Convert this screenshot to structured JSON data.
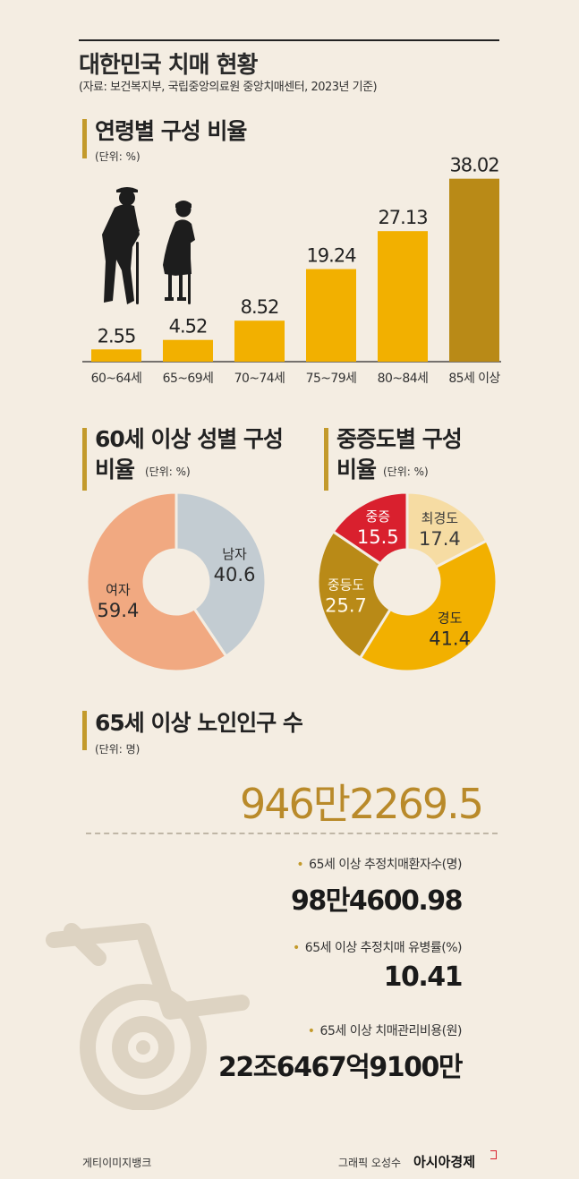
{
  "header": {
    "title": "대한민국 치매 현황",
    "source": "(자료: 보건복지부, 국립중앙의료원 중앙치매센터, 2023년 기준)"
  },
  "age_section": {
    "title": "연령별 구성 비율",
    "unit": "(단위: %)"
  },
  "gender_section": {
    "title_line1": "60세 이상 성별 구성",
    "title_line2": "비율",
    "unit": "(단위: %)"
  },
  "severity_section": {
    "title_line1": "중증도별 구성",
    "title_line2": "비율",
    "unit": "(단위: %)"
  },
  "population_section": {
    "title": "65세 이상 노인인구 수",
    "unit": "(단위: 명)",
    "value": "946만2269.5"
  },
  "stats": [
    {
      "label": "65세 이상 추정치매환자수(명)",
      "value": "98만4600.98"
    },
    {
      "label": "65세 이상 추정치매 유병률(%)",
      "value": "10.41"
    },
    {
      "label": "65세 이상 치매관리비용(원)",
      "value": "22조6467억9100만"
    }
  ],
  "footer": {
    "credit": "게티이미지뱅크",
    "graphic_by": "그래픽 오성수",
    "publisher": "아시아경제"
  },
  "colors": {
    "bar": "#f2b000",
    "bar_highlight": "#b98a17",
    "female": "#f1a981",
    "male": "#c3ccd2",
    "critical": "#d9202e",
    "mildest": "#f6dca3",
    "mild": "#f2b000",
    "moderate": "#b98a17",
    "accent": "#c39a2b"
  },
  "icons": [
    "elderly-couple-silhouette-icon",
    "wheelchair-icon"
  ],
  "chart_data": [
    {
      "type": "bar",
      "categories": [
        "60~64세",
        "65~69세",
        "70~74세",
        "75~79세",
        "80~84세",
        "85세 이상"
      ],
      "values": [
        2.55,
        4.52,
        8.52,
        19.24,
        27.13,
        38.02
      ],
      "value_labels": [
        "2.55",
        "4.52",
        "8.52",
        "19.24",
        "27.13",
        "38.02"
      ],
      "title": "연령별 구성 비율",
      "ylim": [
        0,
        40
      ]
    },
    {
      "type": "pie",
      "title": "60세 이상 성별 구성 비율",
      "slices": [
        {
          "name": "남자",
          "value": 40.6,
          "label": "40.6",
          "color": "#c3ccd2"
        },
        {
          "name": "여자",
          "value": 59.4,
          "label": "59.4",
          "color": "#f1a981"
        }
      ]
    },
    {
      "type": "pie",
      "title": "중증도별 구성 비율",
      "slices": [
        {
          "name": "최경도",
          "value": 17.4,
          "label": "17.4",
          "color": "#f6dca3"
        },
        {
          "name": "경도",
          "value": 41.4,
          "label": "41.4",
          "color": "#f2b000"
        },
        {
          "name": "중등도",
          "value": 25.7,
          "label": "25.7",
          "color": "#b98a17"
        },
        {
          "name": "중증",
          "value": 15.5,
          "label": "15.5",
          "color": "#d9202e"
        }
      ]
    }
  ]
}
